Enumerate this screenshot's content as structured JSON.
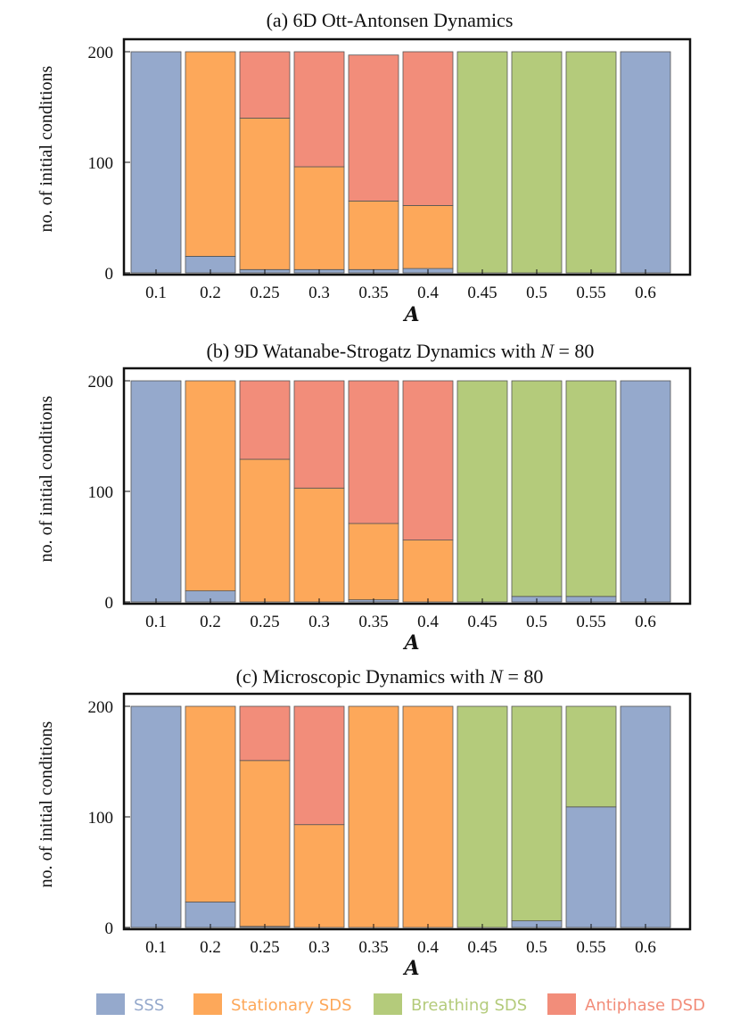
{
  "colors": {
    "SSS": "#95a9cc",
    "Stationary SDS": "#fda85a",
    "Breathing SDS": "#b4cb7b",
    "Antiphase DSD": "#f28d7a"
  },
  "legend": {
    "placement": "bottom",
    "entries": [
      "SSS",
      "Stationary SDS",
      "Breathing SDS",
      "Antiphase DSD"
    ]
  },
  "chart_data": [
    {
      "type": "bar",
      "stacked": true,
      "title": "(a) 6D Ott-Antonsen Dynamics",
      "xlabel": "A",
      "ylabel": "no. of initial conditions",
      "ylim": [
        0,
        200
      ],
      "yticks": [
        0,
        100,
        200
      ],
      "categories": [
        "0.1",
        "0.2",
        "0.25",
        "0.3",
        "0.35",
        "0.4",
        "0.45",
        "0.5",
        "0.55",
        "0.6"
      ],
      "series": [
        {
          "name": "SSS",
          "values": [
            200,
            15,
            3,
            3,
            3,
            4,
            0,
            0,
            0,
            200
          ]
        },
        {
          "name": "Stationary SDS",
          "values": [
            0,
            185,
            137,
            93,
            62,
            57,
            0,
            0,
            0,
            0
          ]
        },
        {
          "name": "Breathing SDS",
          "values": [
            0,
            0,
            0,
            0,
            0,
            0,
            200,
            200,
            200,
            0
          ]
        },
        {
          "name": "Antiphase DSD",
          "values": [
            0,
            0,
            60,
            104,
            132,
            139,
            0,
            0,
            0,
            0
          ]
        }
      ]
    },
    {
      "type": "bar",
      "stacked": true,
      "title_prefix": "(b) 9D Watanabe-Strogatz Dynamics with ",
      "title_math": "N",
      "title_suffix": " = 80",
      "xlabel": "A",
      "ylabel": "no. of initial conditions",
      "ylim": [
        0,
        200
      ],
      "yticks": [
        0,
        100,
        200
      ],
      "categories": [
        "0.1",
        "0.2",
        "0.25",
        "0.3",
        "0.35",
        "0.4",
        "0.45",
        "0.5",
        "0.55",
        "0.6"
      ],
      "series": [
        {
          "name": "SSS",
          "values": [
            200,
            10,
            0,
            0,
            2,
            0,
            0,
            5,
            5,
            200
          ]
        },
        {
          "name": "Stationary SDS",
          "values": [
            0,
            190,
            129,
            103,
            69,
            56,
            0,
            0,
            0,
            0
          ]
        },
        {
          "name": "Breathing SDS",
          "values": [
            0,
            0,
            0,
            0,
            0,
            0,
            200,
            195,
            195,
            0
          ]
        },
        {
          "name": "Antiphase DSD",
          "values": [
            0,
            0,
            71,
            97,
            129,
            144,
            0,
            0,
            0,
            0
          ]
        }
      ]
    },
    {
      "type": "bar",
      "stacked": true,
      "title_prefix": "(c) Microscopic Dynamics with ",
      "title_math": "N",
      "title_suffix": " = 80",
      "xlabel": "A",
      "ylabel": "no. of initial conditions",
      "ylim": [
        0,
        200
      ],
      "yticks": [
        0,
        100,
        200
      ],
      "categories": [
        "0.1",
        "0.2",
        "0.25",
        "0.3",
        "0.35",
        "0.4",
        "0.45",
        "0.5",
        "0.55",
        "0.6"
      ],
      "series": [
        {
          "name": "SSS",
          "values": [
            200,
            23,
            1,
            0,
            0,
            0,
            0,
            6,
            109,
            200
          ]
        },
        {
          "name": "Stationary SDS",
          "values": [
            0,
            177,
            150,
            93,
            200,
            200,
            0,
            0,
            0,
            0
          ]
        },
        {
          "name": "Breathing SDS",
          "values": [
            0,
            0,
            0,
            0,
            0,
            0,
            200,
            194,
            91,
            0
          ]
        },
        {
          "name": "Antiphase DSD",
          "values": [
            0,
            0,
            49,
            107,
            0,
            0,
            0,
            0,
            0,
            0
          ]
        }
      ]
    }
  ]
}
